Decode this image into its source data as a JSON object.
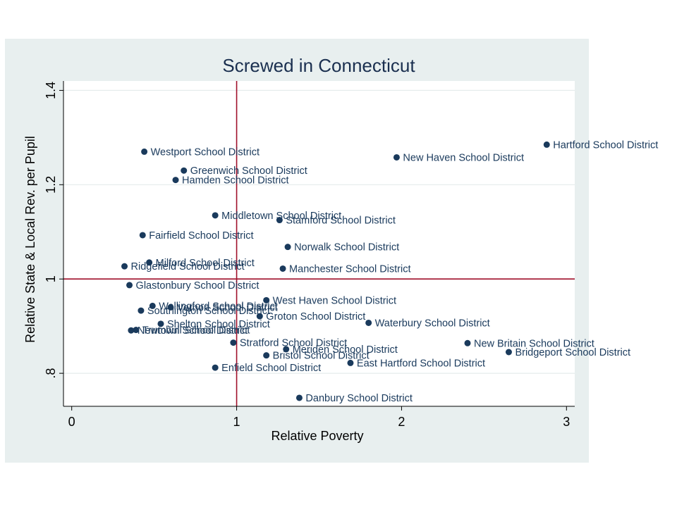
{
  "colors": {
    "outer_background": "#e8efef",
    "plot_background": "#ffffff",
    "gridline": "#e6ecec",
    "axis": "#000000",
    "marker": "#1a3a5c",
    "reference_line": "#a0102a",
    "title": "#1a2f4f"
  },
  "chart_data": {
    "type": "scatter",
    "title": "Screwed in Connecticut",
    "xlabel": "Relative Poverty",
    "ylabel": "Relative State & Local Rev. per Pupil",
    "xlim": [
      -0.05,
      3.05
    ],
    "ylim": [
      0.73,
      1.42
    ],
    "xticks": [
      0,
      1,
      2,
      3
    ],
    "xtick_labels": [
      "0",
      "1",
      "2",
      "3"
    ],
    "yticks": [
      0.8,
      1.0,
      1.2,
      1.4
    ],
    "ytick_labels": [
      ".8",
      "1",
      "1.2",
      "1.4"
    ],
    "grid": true,
    "reference_lines": {
      "x": 1,
      "y": 1
    },
    "points": [
      {
        "label": "Hartford School District",
        "x": 2.88,
        "y": 1.285
      },
      {
        "label": "New Haven School District",
        "x": 1.97,
        "y": 1.258
      },
      {
        "label": "Westport School District",
        "x": 0.44,
        "y": 1.27
      },
      {
        "label": "Greenwich School District",
        "x": 0.68,
        "y": 1.23
      },
      {
        "label": "Hamden School District",
        "x": 0.63,
        "y": 1.21
      },
      {
        "label": "Middletown School District",
        "x": 0.87,
        "y": 1.135
      },
      {
        "label": "Stamford School District",
        "x": 1.26,
        "y": 1.125
      },
      {
        "label": "Fairfield School District",
        "x": 0.43,
        "y": 1.093
      },
      {
        "label": "Norwalk School District",
        "x": 1.31,
        "y": 1.068
      },
      {
        "label": "Milford School District",
        "x": 0.47,
        "y": 1.035
      },
      {
        "label": "Ridgefield School District",
        "x": 0.32,
        "y": 1.027
      },
      {
        "label": "Manchester School District",
        "x": 1.28,
        "y": 1.022
      },
      {
        "label": "Glastonbury School District",
        "x": 0.35,
        "y": 0.987
      },
      {
        "label": "West Haven School District",
        "x": 1.18,
        "y": 0.955
      },
      {
        "label": "Wallingford School District",
        "x": 0.49,
        "y": 0.943
      },
      {
        "label": "Vernon School District",
        "x": 0.6,
        "y": 0.94
      },
      {
        "label": "Southington School District",
        "x": 0.42,
        "y": 0.933
      },
      {
        "label": "Groton School District",
        "x": 1.14,
        "y": 0.921
      },
      {
        "label": "Shelton School District",
        "x": 0.54,
        "y": 0.905
      },
      {
        "label": "Waterbury School District",
        "x": 1.8,
        "y": 0.907
      },
      {
        "label": "Newtown School District",
        "x": 0.36,
        "y": 0.891
      },
      {
        "label": "Trumbull School District",
        "x": 0.39,
        "y": 0.892
      },
      {
        "label": "Stratford School District",
        "x": 0.98,
        "y": 0.865
      },
      {
        "label": "New Britain School District",
        "x": 2.4,
        "y": 0.864
      },
      {
        "label": "Meriden School District",
        "x": 1.3,
        "y": 0.851
      },
      {
        "label": "Bridgeport School District",
        "x": 2.65,
        "y": 0.845
      },
      {
        "label": "Bristol School District",
        "x": 1.18,
        "y": 0.838
      },
      {
        "label": "East Hartford School District",
        "x": 1.69,
        "y": 0.822
      },
      {
        "label": "Enfield School District",
        "x": 0.87,
        "y": 0.812
      },
      {
        "label": "Danbury School District",
        "x": 1.38,
        "y": 0.748
      }
    ]
  }
}
